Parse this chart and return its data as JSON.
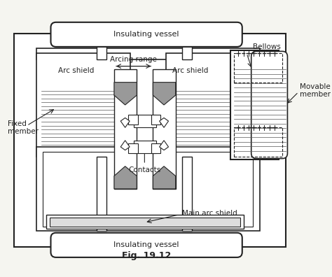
{
  "title": "Fig. 19.12",
  "bg_color": "#f5f5f0",
  "line_color": "#222222",
  "gray_fill": "#999999",
  "light_gray": "#cccccc",
  "labels": {
    "insulating_vessel_top": "Insulating vessel",
    "insulating_vessel_bottom": "Insulating vessel",
    "arc_shield_left": "Arc shield",
    "arc_shield_right": "Arc shield",
    "arcing_range": "Arcing range",
    "bellows": "Bellows",
    "movable_member": "Movable\nmember",
    "fixed_member": "Fixed\nmember",
    "contacts": "Contacts",
    "main_arc_shield": "Main arc shield"
  }
}
